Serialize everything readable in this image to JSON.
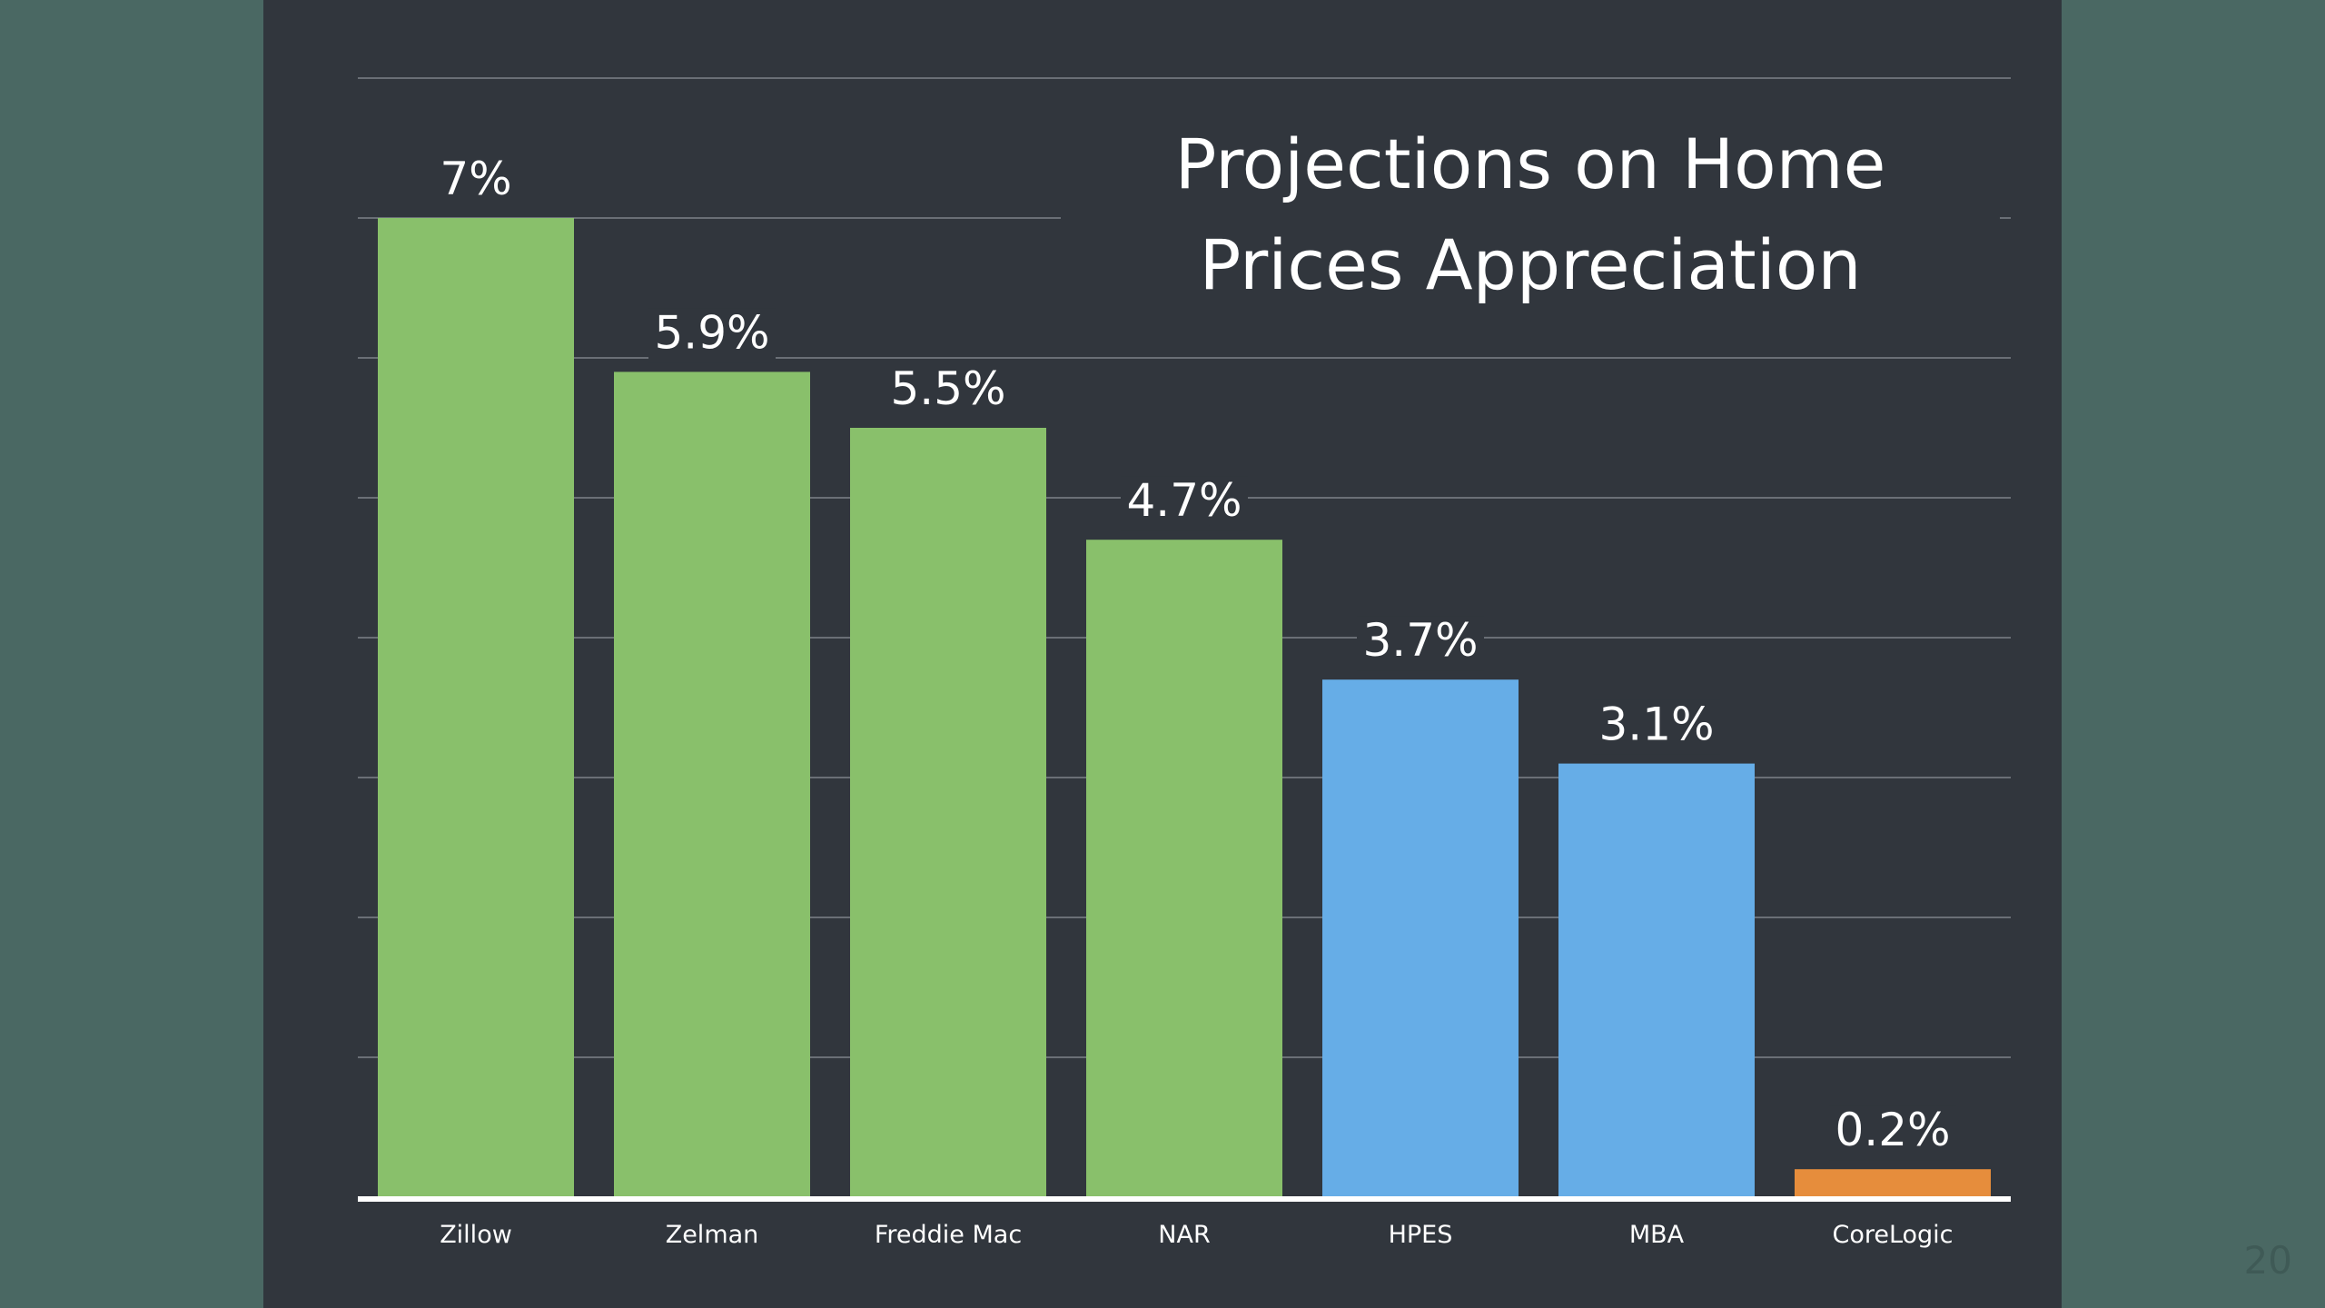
{
  "page_number": "20",
  "chart_data": {
    "type": "bar",
    "title": [
      "Projections on Home",
      "Prices Appreciation"
    ],
    "categories": [
      "Zillow",
      "Zelman",
      "Freddie Mac",
      "NAR",
      "HPES",
      "MBA",
      "CoreLogic"
    ],
    "values": [
      7,
      5.9,
      5.5,
      4.7,
      3.7,
      3.1,
      0.2
    ],
    "data_labels": [
      "7%",
      "5.9%",
      "5.5%",
      "4.7%",
      "3.7%",
      "3.1%",
      "0.2%"
    ],
    "colors": [
      "#89c06b",
      "#89c06b",
      "#89c06b",
      "#89c06b",
      "#66ade7",
      "#66ade7",
      "#e68d3c"
    ],
    "gridline_color": "#6a6f76",
    "axis_color": "#ffffff",
    "ylim": [
      0,
      8
    ],
    "grid": true,
    "legend": "none"
  }
}
